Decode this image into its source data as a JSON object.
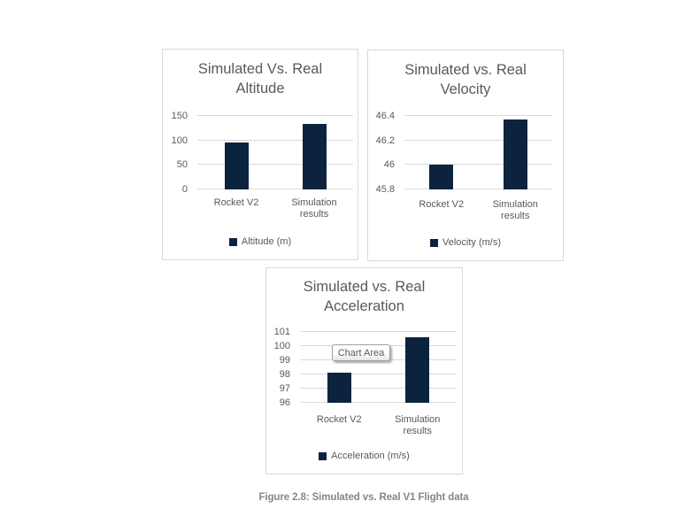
{
  "caption": {
    "text": "Figure 2.8: Simulated vs. Real V1 Flight data",
    "color": "#868686"
  },
  "tooltip": {
    "label": "Chart Area"
  },
  "colors": {
    "bar": "#0c2340",
    "chart_border": "#d9d9d9",
    "gridline": "#d9d9d9",
    "text": "#595959"
  },
  "chart_data": [
    {
      "type": "bar",
      "title_line1": "Simulated Vs. Real",
      "title_line2": "Altitude",
      "categories": [
        "Rocket V2",
        "Simulation results"
      ],
      "values": [
        95,
        134
      ],
      "ylim": [
        0,
        150
      ],
      "yticks": [
        "0",
        "50",
        "100",
        "150"
      ],
      "ytick_values": [
        0,
        50,
        100,
        150
      ],
      "legend": "Altitude (m)",
      "grid": true,
      "legend_position": "bottom"
    },
    {
      "type": "bar",
      "title_line1": "Simulated vs. Real",
      "title_line2": "Velocity",
      "categories": [
        "Rocket V2",
        "Simulation results"
      ],
      "values": [
        46,
        46.37
      ],
      "ylim": [
        45.8,
        46.4
      ],
      "yticks": [
        "45.8",
        "46",
        "46.2",
        "46.4"
      ],
      "ytick_values": [
        45.8,
        46,
        46.2,
        46.4
      ],
      "legend": "Velocity (m/s)",
      "grid": true,
      "legend_position": "bottom"
    },
    {
      "type": "bar",
      "title_line1": "Simulated vs. Real",
      "title_line2": "Acceleration",
      "categories": [
        "Rocket V2",
        "Simulation results"
      ],
      "values": [
        98.1,
        100.6
      ],
      "ylim": [
        96,
        101
      ],
      "yticks": [
        "96",
        "97",
        "98",
        "99",
        "100",
        "101"
      ],
      "ytick_values": [
        96,
        97,
        98,
        99,
        100,
        101
      ],
      "legend": "Acceleration (m/s)",
      "grid": true,
      "legend_position": "bottom"
    }
  ]
}
